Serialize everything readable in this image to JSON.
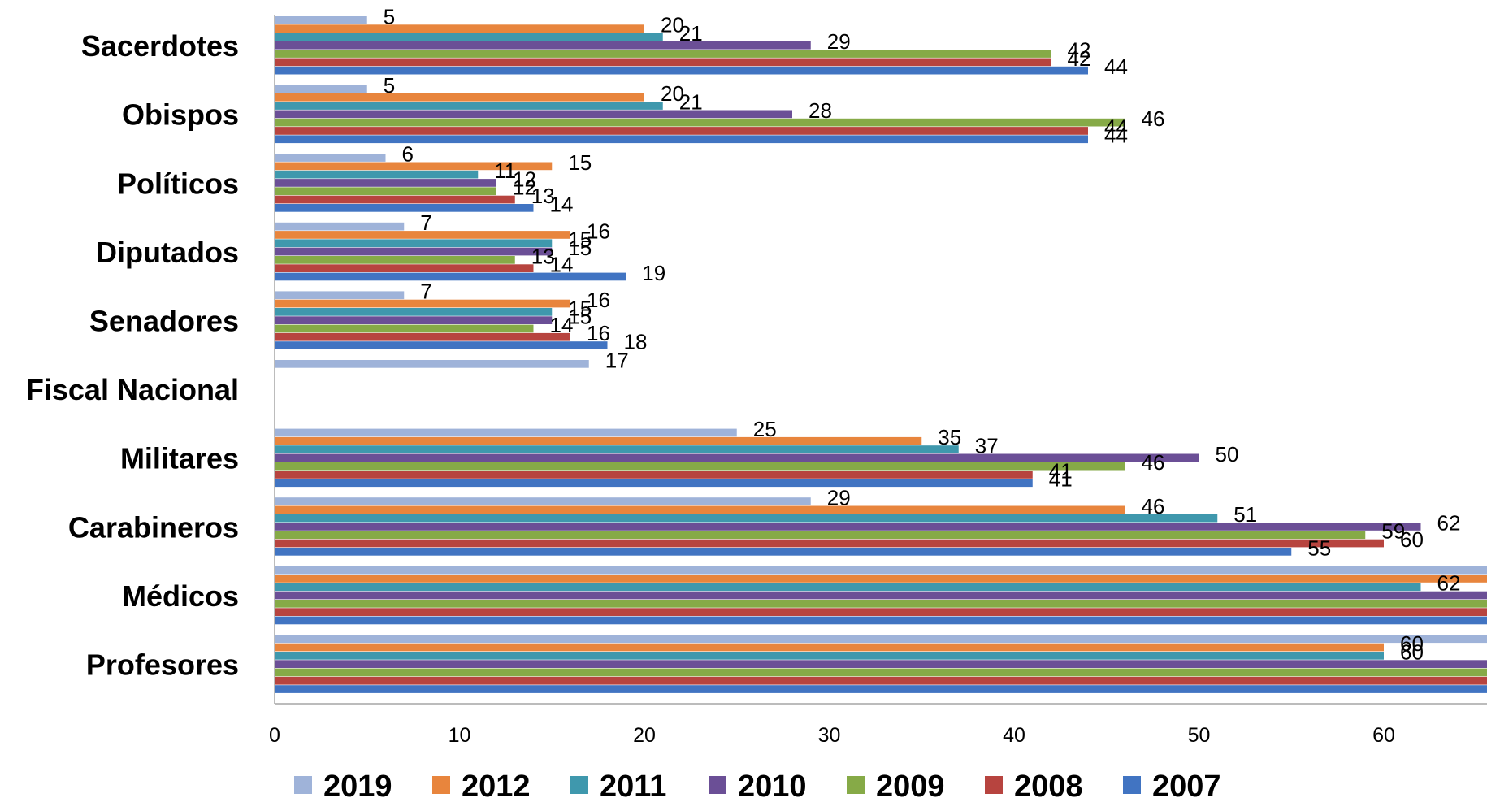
{
  "chart_data": {
    "type": "bar",
    "orientation": "horizontal",
    "categories": [
      "Sacerdotes",
      "Obispos",
      "Políticos",
      "Diputados",
      "Senadores",
      "Fiscal Nacional",
      "Militares",
      "Carabineros",
      "Médicos",
      "Profesores"
    ],
    "series": [
      {
        "name": "2019",
        "color": "#9fb3d9",
        "values": [
          5,
          5,
          6,
          7,
          7,
          17,
          25,
          29,
          68,
          70
        ]
      },
      {
        "name": "2012",
        "color": "#e8853d",
        "values": [
          20,
          20,
          15,
          16,
          16,
          null,
          35,
          46,
          69,
          60
        ]
      },
      {
        "name": "2011",
        "color": "#3f98ad",
        "values": [
          21,
          21,
          11,
          15,
          15,
          null,
          37,
          51,
          62,
          60
        ]
      },
      {
        "name": "2010",
        "color": "#6b4f96",
        "values": [
          29,
          28,
          12,
          15,
          15,
          null,
          50,
          62,
          66,
          69
        ]
      },
      {
        "name": "2009",
        "color": "#86aa47",
        "values": [
          42,
          46,
          12,
          13,
          14,
          null,
          46,
          59,
          75,
          72
        ]
      },
      {
        "name": "2008",
        "color": "#b7443f",
        "values": [
          42,
          44,
          13,
          14,
          16,
          null,
          41,
          60,
          69,
          69
        ]
      },
      {
        "name": "2007",
        "color": "#4174c2",
        "values": [
          44,
          44,
          14,
          19,
          18,
          null,
          41,
          55,
          72,
          68
        ]
      }
    ],
    "xlim": [
      0,
      80
    ],
    "xticks": [
      "0",
      "10",
      "20",
      "30",
      "40",
      "50",
      "60",
      "70",
      "80"
    ],
    "grid": false,
    "legend_position": "bottom"
  }
}
